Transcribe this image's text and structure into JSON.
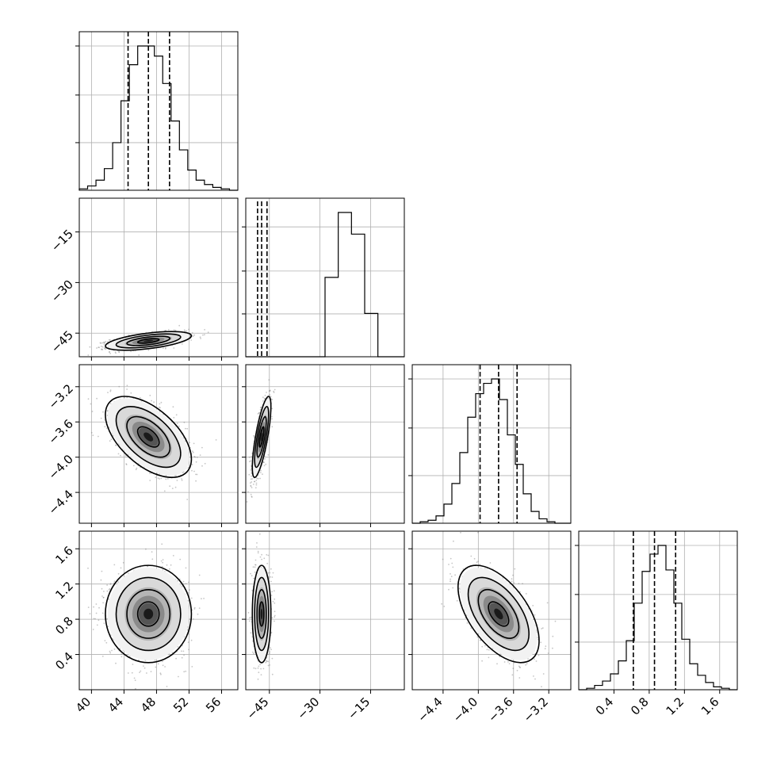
{
  "chart_data": {
    "type": "corner",
    "parameters": [
      {
        "id": "p0",
        "range": [
          38.5,
          58
        ],
        "ticks": [
          40,
          44,
          48,
          52,
          56
        ],
        "tick_labels": [
          "40",
          "44",
          "48",
          "52",
          "56"
        ],
        "quantiles": [
          44.5,
          47.0,
          49.6
        ],
        "mean": 47.0,
        "sd": 2.3,
        "hist_counts": [
          1,
          3,
          7,
          15,
          33,
          62,
          87,
          100,
          100,
          93,
          74,
          48,
          28,
          14,
          7,
          4,
          2,
          1,
          0
        ]
      },
      {
        "id": "p1",
        "range": [
          -52,
          -5
        ],
        "ticks": [
          -45,
          -30,
          -15
        ],
        "tick_labels": [
          "−45",
          "−30",
          "−15"
        ],
        "quantiles": [
          -48.5,
          -47.3,
          -45.7
        ],
        "mean": -47.3,
        "sd": 1.2,
        "hist_counts": [
          0,
          0,
          0,
          0,
          0,
          0,
          55,
          100,
          85,
          30,
          0,
          0
        ]
      },
      {
        "id": "p2",
        "range": [
          -4.75,
          -2.95
        ],
        "ticks": [
          -4.4,
          -4.0,
          -3.6,
          -3.2
        ],
        "tick_labels": [
          "−4.4",
          "−4.0",
          "−3.6",
          "−3.2"
        ],
        "quantiles": [
          -3.98,
          -3.77,
          -3.56
        ],
        "mean": -3.77,
        "sd": 0.2,
        "hist_counts": [
          0,
          1,
          2,
          5,
          13,
          27,
          48,
          72,
          88,
          95,
          98,
          84,
          60,
          40,
          20,
          8,
          3,
          1,
          0,
          0
        ]
      },
      {
        "id": "p3",
        "range": [
          0.0,
          1.8
        ],
        "ticks": [
          0.4,
          0.8,
          1.2,
          1.6
        ],
        "tick_labels": [
          "0.4",
          "0.8",
          "1.2",
          "1.6"
        ],
        "quantiles": [
          0.62,
          0.86,
          1.1
        ],
        "mean": 0.86,
        "sd": 0.24,
        "hist_counts": [
          0,
          1,
          3,
          6,
          11,
          20,
          34,
          60,
          82,
          94,
          100,
          83,
          60,
          35,
          18,
          10,
          5,
          2,
          1,
          0
        ]
      }
    ],
    "correlations": {
      "1-0": 0.55,
      "2-0": -0.55,
      "2-1": 0.75,
      "3-0": 0.0,
      "3-1": 0.0,
      "3-2": -0.55
    },
    "contour_levels_sigma": [
      0.5,
      1.0,
      1.5,
      2.0
    ],
    "style": {
      "hist_color": "#000000",
      "contour_color": "#000000",
      "density_dark": "#1a1a1a",
      "point_color": "#808080",
      "grid": true
    }
  }
}
